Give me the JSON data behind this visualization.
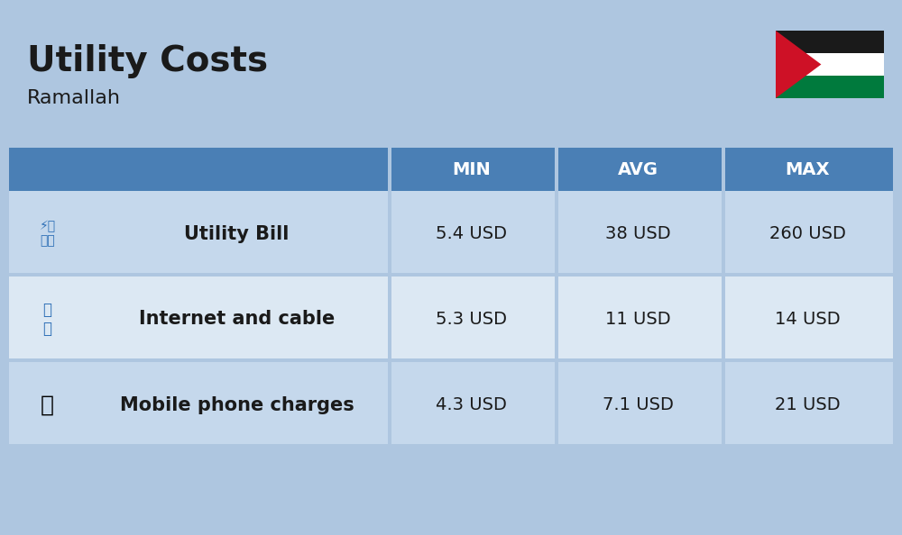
{
  "title": "Utility Costs",
  "subtitle": "Ramallah",
  "background_color": "#aec6e0",
  "header_bg_color": "#4a7fb5",
  "header_text_color": "#ffffff",
  "row_bg_color_1": "#c5d8ec",
  "row_bg_color_2": "#dce8f3",
  "icon_col_bg": "#b8cfe8",
  "table_border_color": "#ffffff",
  "rows": [
    {
      "label": "Utility Bill",
      "min": "5.4 USD",
      "avg": "38 USD",
      "max": "260 USD"
    },
    {
      "label": "Internet and cable",
      "min": "5.3 USD",
      "avg": "11 USD",
      "max": "14 USD"
    },
    {
      "label": "Mobile phone charges",
      "min": "4.3 USD",
      "avg": "7.1 USD",
      "max": "21 USD"
    }
  ],
  "col_headers": [
    "MIN",
    "AVG",
    "MAX"
  ],
  "flag_colors": {
    "black": "#1a1a1a",
    "white": "#ffffff",
    "green": "#007a3d",
    "red": "#ce1126",
    "triangle": "#ce1126"
  },
  "title_fontsize": 28,
  "subtitle_fontsize": 16,
  "header_fontsize": 14,
  "cell_fontsize": 14,
  "label_fontsize": 15
}
